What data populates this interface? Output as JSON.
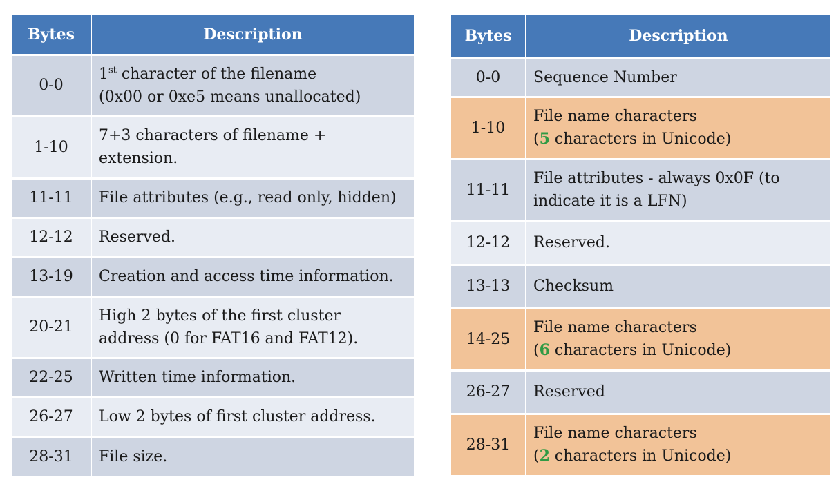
{
  "left_table": {
    "headers": [
      "Bytes",
      "Description"
    ],
    "rows": [
      {
        "bytes": "0-0",
        "desc_prefix": "1",
        "desc_sup": "st",
        "desc_line1": " character of the filename",
        "desc_line2": "(0x00 or 0xe5 means unallocated)"
      },
      {
        "bytes": "1-10",
        "desc_line1": "7+3 characters of filename +",
        "desc_line2": "extension."
      },
      {
        "bytes": "11-11",
        "desc_line1": "File attributes (e.g., read only, hidden)"
      },
      {
        "bytes": "12-12",
        "desc_line1": "Reserved."
      },
      {
        "bytes": "13-19",
        "desc_line1": "Creation and access time information."
      },
      {
        "bytes": "20-21",
        "desc_line1": "High 2 bytes of the first cluster",
        "desc_line2": "address (0 for FAT16 and FAT12)."
      },
      {
        "bytes": "22-25",
        "desc_line1": "Written time information."
      },
      {
        "bytes": "26-27",
        "desc_line1": "Low 2 bytes of first cluster address."
      },
      {
        "bytes": "28-31",
        "desc_line1": "File size."
      }
    ]
  },
  "right_table": {
    "headers": [
      "Bytes",
      "Description"
    ],
    "rows": [
      {
        "bytes": "0-0",
        "desc_line1": "Sequence Number"
      },
      {
        "bytes": "1-10",
        "desc_line1": "File name characters",
        "open": "(",
        "num": "5",
        "rest": " characters in Unicode)"
      },
      {
        "bytes": "11-11",
        "desc_line1": "File attributes  - always 0x0F (to",
        "desc_line2": "indicate it is a LFN)"
      },
      {
        "bytes": "12-12",
        "desc_line1": "Reserved."
      },
      {
        "bytes": "13-13",
        "desc_line1": "Checksum"
      },
      {
        "bytes": "14-25",
        "desc_line1": "File name characters",
        "open": "(",
        "num": "6",
        "rest": " characters  in Unicode)"
      },
      {
        "bytes": "26-27",
        "desc_line1": "Reserved"
      },
      {
        "bytes": "28-31",
        "desc_line1": "File name characters",
        "open": "(",
        "num": "2",
        "rest": " characters in Unicode)"
      }
    ]
  },
  "colors": {
    "header_bg": "#4679b8",
    "row_dark": "#ced5e2",
    "row_light": "#e8ecf3",
    "row_highlight": "#f2c398",
    "number_green": "#2f9a44"
  }
}
